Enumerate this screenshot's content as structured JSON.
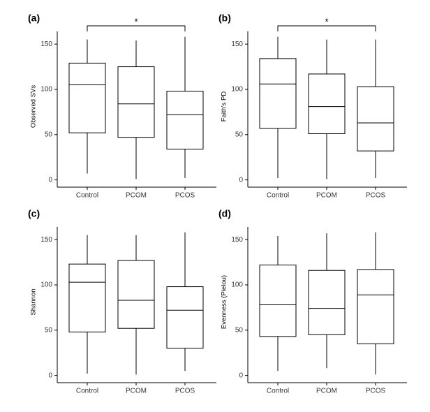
{
  "chart_data": [
    {
      "type": "box",
      "panel_label": "(a)",
      "y_label": "Observed SVs",
      "categories": [
        "Control",
        "PCOM",
        "PCOS"
      ],
      "whisker_low": [
        7,
        1,
        2
      ],
      "q1": [
        52,
        47,
        34
      ],
      "median": [
        105,
        84,
        72
      ],
      "q3": [
        129,
        125,
        98
      ],
      "whisker_high": [
        155,
        154,
        158
      ],
      "ylim": [
        -8,
        164
      ],
      "yticks": [
        0,
        50,
        100,
        150
      ],
      "color": "#000000",
      "significance": {
        "label": "*",
        "between": [
          "Control",
          "PCOS"
        ]
      }
    },
    {
      "type": "box",
      "panel_label": "(b)",
      "y_label": "Faith's PD",
      "categories": [
        "Control",
        "PCOM",
        "PCOS"
      ],
      "whisker_low": [
        2,
        1,
        2
      ],
      "q1": [
        57,
        51,
        32
      ],
      "median": [
        106,
        81,
        63
      ],
      "q3": [
        134,
        117,
        103
      ],
      "whisker_high": [
        158,
        155,
        155
      ],
      "ylim": [
        -8,
        164
      ],
      "yticks": [
        0,
        50,
        100,
        150
      ],
      "color": "#000000",
      "significance": {
        "label": "*",
        "between": [
          "Control",
          "PCOS"
        ]
      }
    },
    {
      "type": "box",
      "panel_label": "(c)",
      "y_label": "Shannon",
      "categories": [
        "Control",
        "PCOM",
        "PCOS"
      ],
      "whisker_low": [
        2,
        1,
        5
      ],
      "q1": [
        48,
        52,
        30
      ],
      "median": [
        103,
        83,
        72
      ],
      "q3": [
        123,
        127,
        98
      ],
      "whisker_high": [
        155,
        155,
        158
      ],
      "ylim": [
        -8,
        164
      ],
      "yticks": [
        0,
        50,
        100,
        150
      ],
      "color": "#000000"
    },
    {
      "type": "box",
      "panel_label": "(d)",
      "y_label": "Evenness (Pielou)",
      "categories": [
        "Control",
        "PCOM",
        "PCOS"
      ],
      "whisker_low": [
        5,
        8,
        1
      ],
      "q1": [
        43,
        45,
        35
      ],
      "median": [
        78,
        74,
        89
      ],
      "q3": [
        122,
        116,
        117
      ],
      "whisker_high": [
        154,
        157,
        158
      ],
      "ylim": [
        -8,
        164
      ],
      "yticks": [
        0,
        50,
        100,
        150
      ],
      "color": "#000000"
    }
  ]
}
